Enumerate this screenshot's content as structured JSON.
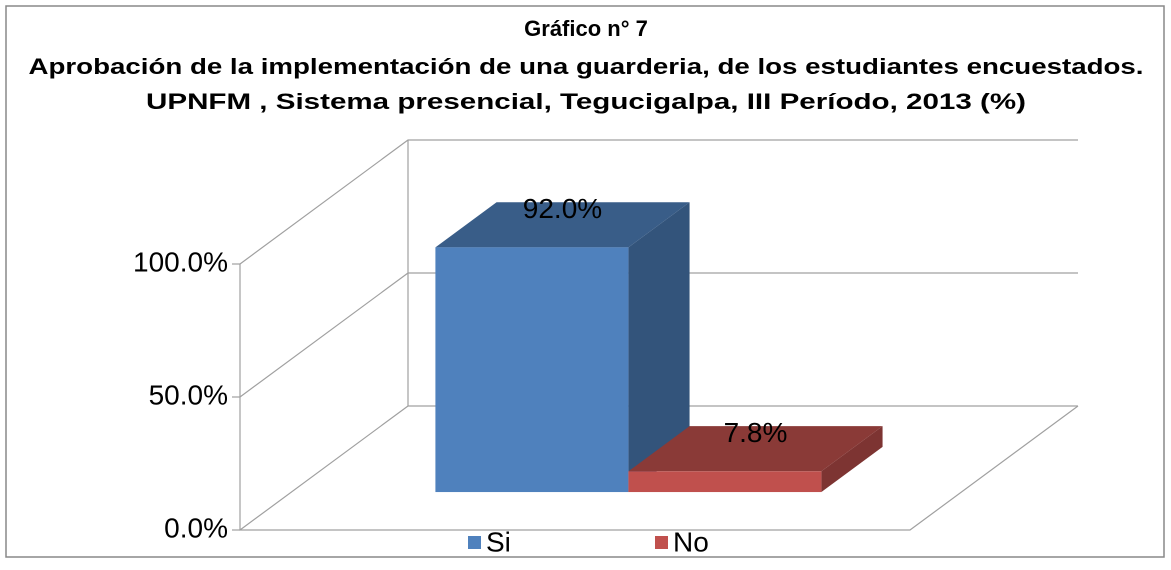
{
  "chart_data": {
    "type": "bar3d",
    "title": "Gráfico n° 7",
    "subtitle": [
      "Aprobación de la implementación de una guarderia, de los estudiantes encuestados.",
      "UPNFM , Sistema presencial, Tegucigalpa, III Período, 2013 (%)"
    ],
    "series": [
      {
        "name": "Si",
        "color": "#4f81bd",
        "values": [
          92.0
        ],
        "value_labels": [
          "92.0%"
        ]
      },
      {
        "name": "No",
        "color": "#c0504d",
        "values": [
          7.8
        ],
        "value_labels": [
          "7.8%"
        ]
      }
    ],
    "ylim": [
      0,
      100
    ],
    "yticks": [
      {
        "value": 0,
        "label": "0.0%"
      },
      {
        "value": 50,
        "label": "50.0%"
      },
      {
        "value": 100,
        "label": "100.0%"
      }
    ],
    "grid": true,
    "legend": "bottom"
  }
}
